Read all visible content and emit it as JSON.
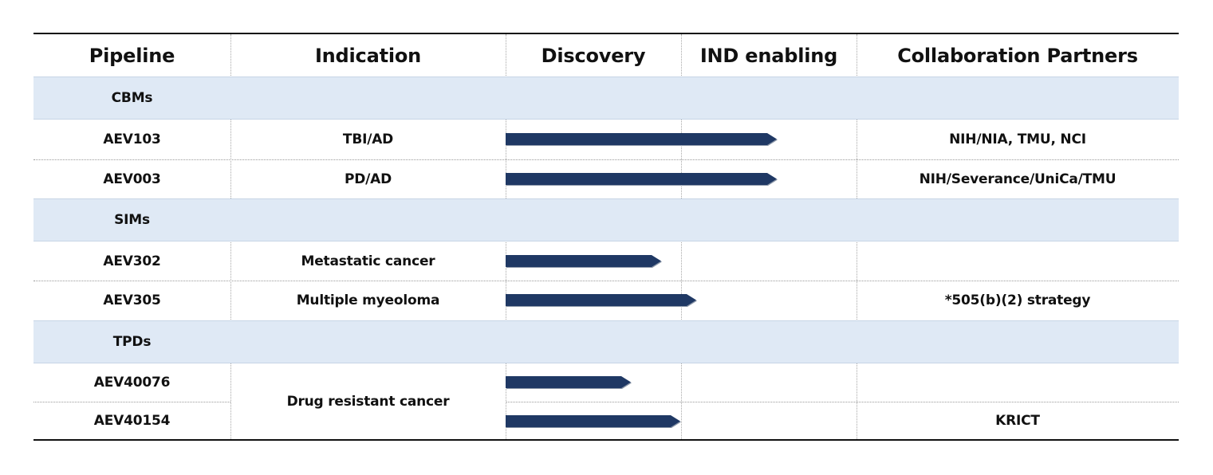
{
  "colors": {
    "band": "#dfe9f5",
    "bar": "#1f3864",
    "rule": "#111111"
  },
  "headers": {
    "pipeline": "Pipeline",
    "indication": "Indication",
    "discovery": "Discovery",
    "ind_enabling": "IND enabling",
    "partners": "Collaboration Partners"
  },
  "sections": [
    {
      "label": "CBMs"
    },
    {
      "label": "SIMs"
    },
    {
      "label": "TPDs"
    }
  ],
  "rows": [
    {
      "pipeline": "AEV103",
      "indication": "TBI/AD",
      "partners": "NIH/NIA, TMU, NCI",
      "progress": 1.55
    },
    {
      "pipeline": "AEV003",
      "indication": "PD/AD",
      "partners": "NIH/Severance/UniCa/TMU",
      "progress": 1.55
    },
    {
      "pipeline": "AEV302",
      "indication": "Metastatic cancer",
      "partners": "",
      "progress": 0.89
    },
    {
      "pipeline": "AEV305",
      "indication": "Multiple myeoloma",
      "partners": "*505(b)(2) strategy",
      "progress": 1.09
    },
    {
      "pipeline": "AEV40076",
      "indication": "Drug resistant cancer",
      "partners": "",
      "progress": 0.72
    },
    {
      "pipeline": "AEV40154",
      "indication": "Drug resistant cancer",
      "partners": "KRICT",
      "progress": 1.0
    }
  ]
}
